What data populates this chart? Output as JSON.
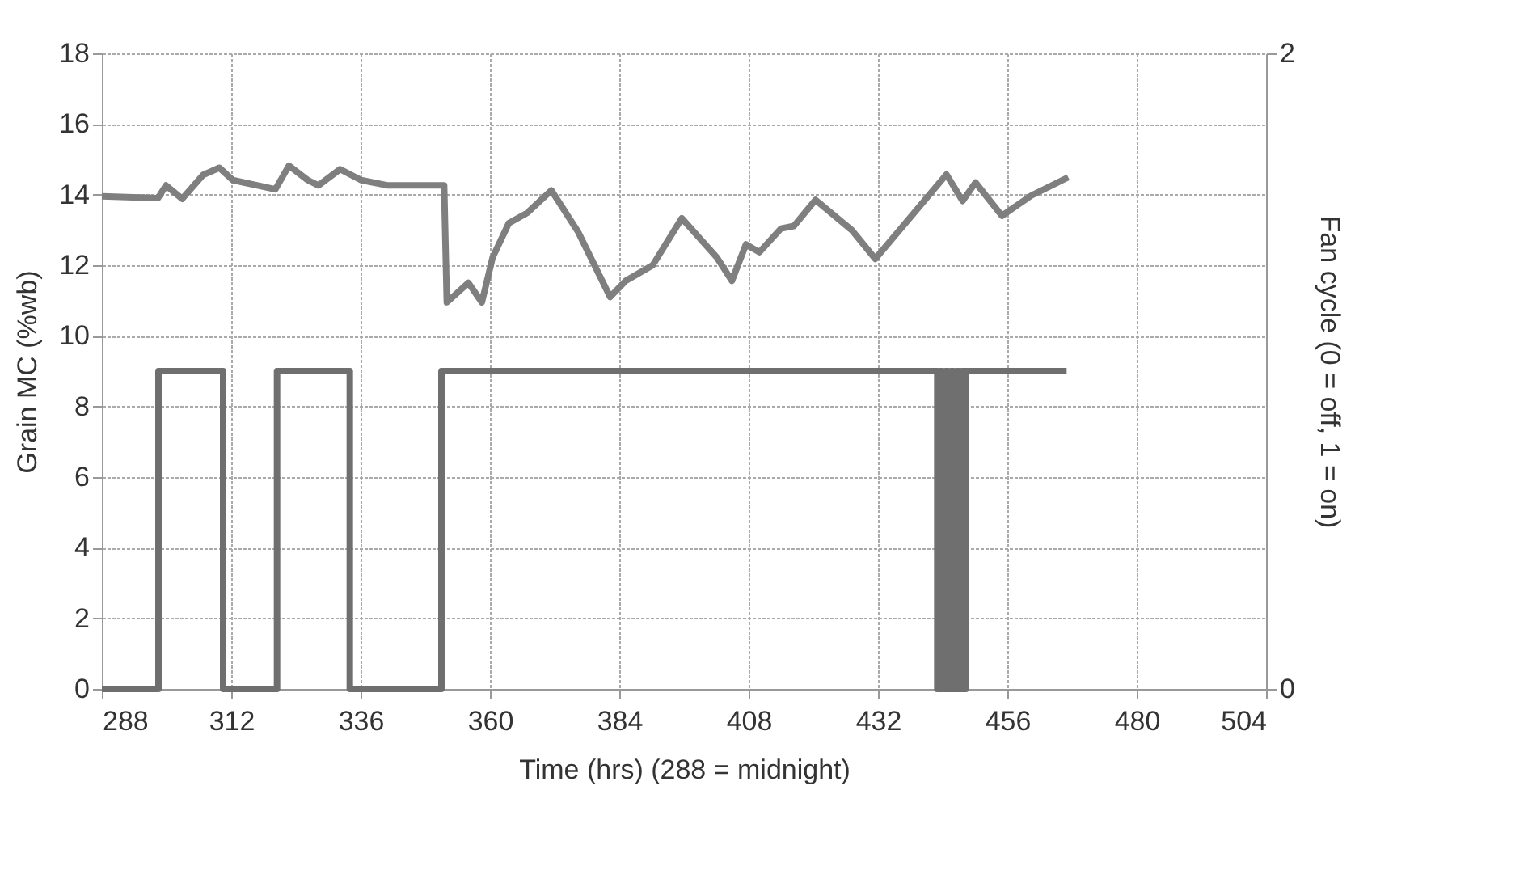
{
  "chart_data": {
    "type": "line",
    "xlabel": "Time (hrs) (288 = midnight)",
    "ylabel": "Grain MC (%wb)",
    "y2label": "Fan cycle (0 = off, 1 = on)",
    "xlim": [
      288,
      504
    ],
    "xticks": [
      288,
      312,
      336,
      360,
      384,
      408,
      432,
      456,
      480,
      504
    ],
    "ylim": [
      0,
      18
    ],
    "yticks": [
      0,
      2,
      4,
      6,
      8,
      10,
      12,
      14,
      16,
      18
    ],
    "y2lim": [
      0,
      2
    ],
    "y2ticks": [
      0,
      2
    ],
    "grid": true,
    "line_style": "solid",
    "marker": "none",
    "series": [
      {
        "color": "#7f7f7f",
        "x": [
          288,
          298.4,
          299.9,
          302.9,
          306.8,
          309.8,
          312.3,
          320.2,
          322.7,
          326.2,
          328.2,
          332.2,
          336.1,
          341.1,
          351.5,
          352,
          356,
          358.5,
          360.5,
          363.5,
          366.9,
          371.4,
          376.3,
          382.3,
          385.2,
          390.2,
          395.6,
          402.1,
          404.9,
          407.5,
          410,
          414,
          416.4,
          420.4,
          427.1,
          431.5,
          444.7,
          447.7,
          450.1,
          455,
          460.4,
          467.3
        ],
        "values": [
          13.95,
          13.9,
          14.26,
          13.88,
          14.56,
          14.76,
          14.41,
          14.15,
          14.82,
          14.41,
          14.26,
          14.72,
          14.41,
          14.26,
          14.26,
          10.95,
          11.5,
          10.95,
          12.22,
          13.19,
          13.48,
          14.12,
          12.96,
          11.1,
          11.56,
          12.0,
          13.33,
          12.22,
          11.56,
          12.59,
          12.37,
          13.04,
          13.11,
          13.85,
          13.0,
          12.18,
          14.57,
          13.82,
          14.34,
          13.4,
          13.97,
          14.49
        ]
      },
      {
        "type": "step",
        "axis": "y2",
        "color": "#6f6f6f",
        "x": [
          288,
          298.5,
          310.5,
          320.5,
          334,
          351,
          443,
          443.5,
          444,
          444.5,
          445,
          445.5,
          446,
          446.5,
          447,
          447.5,
          448,
          448.3,
          467
        ],
        "values": [
          0,
          1,
          0,
          1,
          0,
          1,
          0,
          1,
          0,
          1,
          0,
          1,
          0,
          1,
          0,
          1,
          0,
          1,
          1
        ]
      }
    ]
  }
}
